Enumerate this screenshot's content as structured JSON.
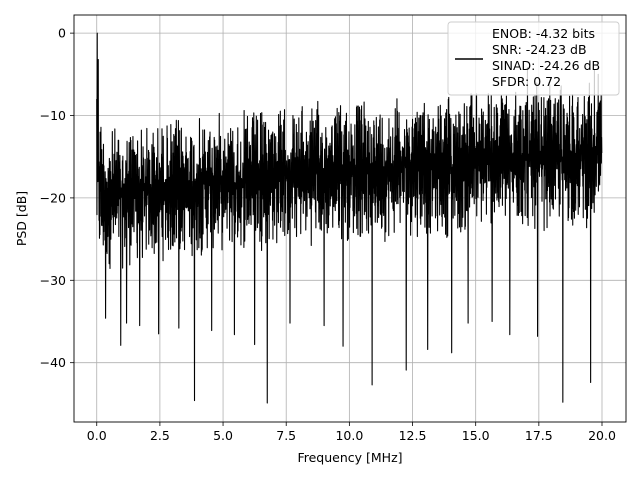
{
  "chart_data": {
    "type": "line",
    "title": "",
    "xlabel": "Frequency [MHz]",
    "ylabel": "PSD [dB]",
    "xlim": [
      -0.9,
      20.95
    ],
    "ylim": [
      -47.2,
      2.2
    ],
    "grid": true,
    "xticks": [
      0.0,
      2.5,
      5.0,
      7.5,
      10.0,
      12.5,
      15.0,
      17.5,
      20.0
    ],
    "xtick_labels": [
      "0.0",
      "2.5",
      "5.0",
      "7.5",
      "10.0",
      "12.5",
      "15.0",
      "17.5",
      "20.0"
    ],
    "yticks": [
      0,
      -10,
      -20,
      -30,
      -40
    ],
    "ytick_labels": [
      "0",
      "−10",
      "−20",
      "−30",
      "−40"
    ],
    "line_color": "#000000",
    "legend": {
      "position": "top-right",
      "entries": [
        "ENOB: -4.32 bits",
        "SNR: -24.23 dB",
        "SINAD: -24.26 dB",
        "SFDR: 0.72"
      ]
    },
    "series": [
      {
        "x_range": [
          0.0,
          20.0
        ],
        "upper_envelope": [
          [
            0.0,
            0.0
          ],
          [
            0.05,
            -3
          ],
          [
            0.15,
            -8
          ],
          [
            0.3,
            -10.5
          ],
          [
            0.6,
            -11
          ],
          [
            1.0,
            -10.5
          ],
          [
            1.5,
            -10
          ],
          [
            2.0,
            -10.5
          ],
          [
            2.5,
            -10
          ],
          [
            3.0,
            -10
          ],
          [
            3.5,
            -9.5
          ],
          [
            4.0,
            -10
          ],
          [
            4.5,
            -9.5
          ],
          [
            5.0,
            -9
          ],
          [
            5.5,
            -9.5
          ],
          [
            6.0,
            -9
          ],
          [
            6.5,
            -9
          ],
          [
            7.0,
            -8.5
          ],
          [
            7.5,
            -8.5
          ],
          [
            8.0,
            -8.5
          ],
          [
            8.5,
            -8
          ],
          [
            9.0,
            -8
          ],
          [
            9.5,
            -8
          ],
          [
            10.0,
            -7.5
          ],
          [
            10.5,
            -7.5
          ],
          [
            11.0,
            -8
          ],
          [
            11.5,
            -7.5
          ],
          [
            12.0,
            -7
          ],
          [
            12.5,
            -7
          ],
          [
            13.0,
            -7
          ],
          [
            13.5,
            -7
          ],
          [
            14.0,
            -6.5
          ],
          [
            14.5,
            -7
          ],
          [
            15.0,
            -6.5
          ],
          [
            15.5,
            -6.5
          ],
          [
            16.0,
            -6.5
          ],
          [
            16.5,
            -6.5
          ],
          [
            17.0,
            -6
          ],
          [
            17.5,
            -6
          ],
          [
            18.0,
            -6
          ],
          [
            18.5,
            -5.5
          ],
          [
            19.0,
            -5.5
          ],
          [
            19.5,
            -5.5
          ],
          [
            20.0,
            -5.5
          ]
        ],
        "lower_envelope": [
          [
            0.0,
            -30
          ],
          [
            0.5,
            -29
          ],
          [
            1.0,
            -29
          ],
          [
            1.5,
            -28.5
          ],
          [
            2.0,
            -28.5
          ],
          [
            2.5,
            -28
          ],
          [
            3.0,
            -28
          ],
          [
            3.5,
            -27.5
          ],
          [
            4.0,
            -27.5
          ],
          [
            4.5,
            -27
          ],
          [
            5.0,
            -27
          ],
          [
            5.5,
            -27
          ],
          [
            6.0,
            -26.5
          ],
          [
            6.5,
            -26.5
          ],
          [
            7.0,
            -26.5
          ],
          [
            7.5,
            -26
          ],
          [
            8.0,
            -26
          ],
          [
            8.5,
            -26
          ],
          [
            9.0,
            -26
          ],
          [
            9.5,
            -25.5
          ],
          [
            10.0,
            -25.5
          ],
          [
            10.5,
            -25.5
          ],
          [
            11.0,
            -25.5
          ],
          [
            11.5,
            -25.5
          ],
          [
            12.0,
            -25
          ],
          [
            12.5,
            -25
          ],
          [
            13.0,
            -25
          ],
          [
            13.5,
            -25
          ],
          [
            14.0,
            -25
          ],
          [
            14.5,
            -25
          ],
          [
            15.0,
            -24.5
          ],
          [
            15.5,
            -24.5
          ],
          [
            16.0,
            -24.5
          ],
          [
            16.5,
            -24.5
          ],
          [
            17.0,
            -24.5
          ],
          [
            17.5,
            -24.5
          ],
          [
            18.0,
            -24
          ],
          [
            18.5,
            -24
          ],
          [
            19.0,
            -24
          ],
          [
            19.5,
            -24
          ],
          [
            20.0,
            -24
          ]
        ],
        "notable_minima": [
          [
            0.35,
            -34.6
          ],
          [
            0.95,
            -37.9
          ],
          [
            1.18,
            -35.2
          ],
          [
            1.7,
            -35.5
          ],
          [
            2.45,
            -36.5
          ],
          [
            3.25,
            -35.8
          ],
          [
            3.87,
            -44.6
          ],
          [
            4.55,
            -36.1
          ],
          [
            5.45,
            -36.6
          ],
          [
            6.25,
            -37.8
          ],
          [
            6.75,
            -44.9
          ],
          [
            7.65,
            -35.2
          ],
          [
            9.0,
            -35.5
          ],
          [
            9.75,
            -38.0
          ],
          [
            10.9,
            -42.7
          ],
          [
            12.25,
            -40.9
          ],
          [
            13.1,
            -38.4
          ],
          [
            14.05,
            -38.8
          ],
          [
            14.7,
            -35.2
          ],
          [
            15.65,
            -35.0
          ],
          [
            16.35,
            -36.6
          ],
          [
            17.45,
            -36.8
          ],
          [
            18.45,
            -44.8
          ],
          [
            19.55,
            -42.4
          ]
        ],
        "notable_maxima": [
          [
            0.02,
            0.0
          ],
          [
            0.06,
            -3.2
          ],
          [
            17.05,
            -4.2
          ],
          [
            19.7,
            -4.5
          ],
          [
            19.85,
            -5.0
          ]
        ]
      }
    ]
  }
}
